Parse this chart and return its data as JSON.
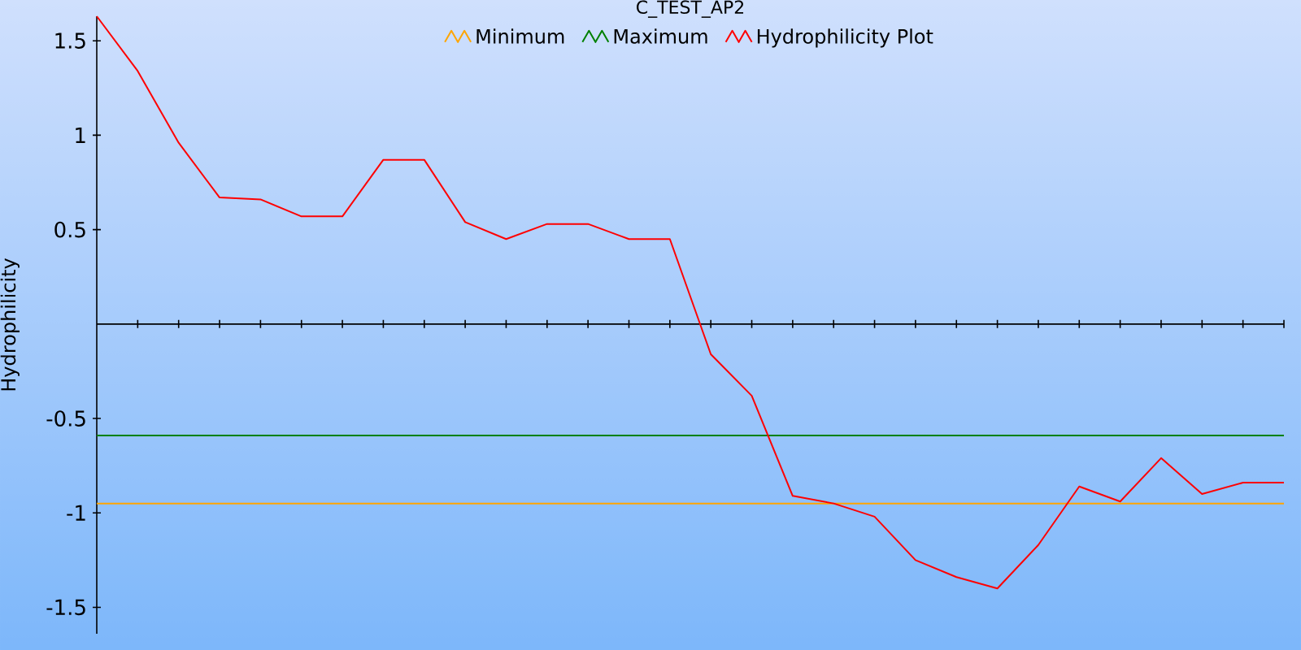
{
  "chart_data": {
    "type": "line",
    "title": "C_TEST_AP2",
    "ylabel": "Hydrophilicity",
    "categories": [
      null,
      null,
      null,
      null,
      null,
      null,
      null,
      null,
      null,
      null,
      null,
      null,
      null,
      null,
      null,
      null,
      null,
      null,
      null,
      null,
      null,
      null,
      null,
      null,
      null,
      null,
      null,
      null,
      null,
      null
    ],
    "series": [
      {
        "name": "Hydrophilicity Plot",
        "color": "#ff0000",
        "values": [
          1.63,
          1.34,
          0.96,
          0.67,
          0.66,
          0.57,
          0.57,
          0.87,
          0.87,
          0.54,
          0.45,
          0.53,
          0.53,
          0.45,
          0.45,
          -0.16,
          -0.38,
          -0.91,
          -0.95,
          -1.02,
          -1.25,
          -1.34,
          -1.4,
          -1.17,
          -0.86,
          -0.94,
          -0.71,
          -0.9,
          -0.84,
          -0.84
        ]
      }
    ],
    "ref_lines": [
      {
        "axis": "y",
        "value": -0.95,
        "label": "Minimum",
        "color": "#ffa500"
      },
      {
        "axis": "y",
        "value": -0.59,
        "label": "Maximum",
        "color": "#008000"
      }
    ],
    "ylim": [
      -1.64,
      1.63
    ],
    "yticks": [
      -1.5,
      -1,
      -0.5,
      0.5,
      1,
      1.5
    ],
    "legend": "top"
  }
}
